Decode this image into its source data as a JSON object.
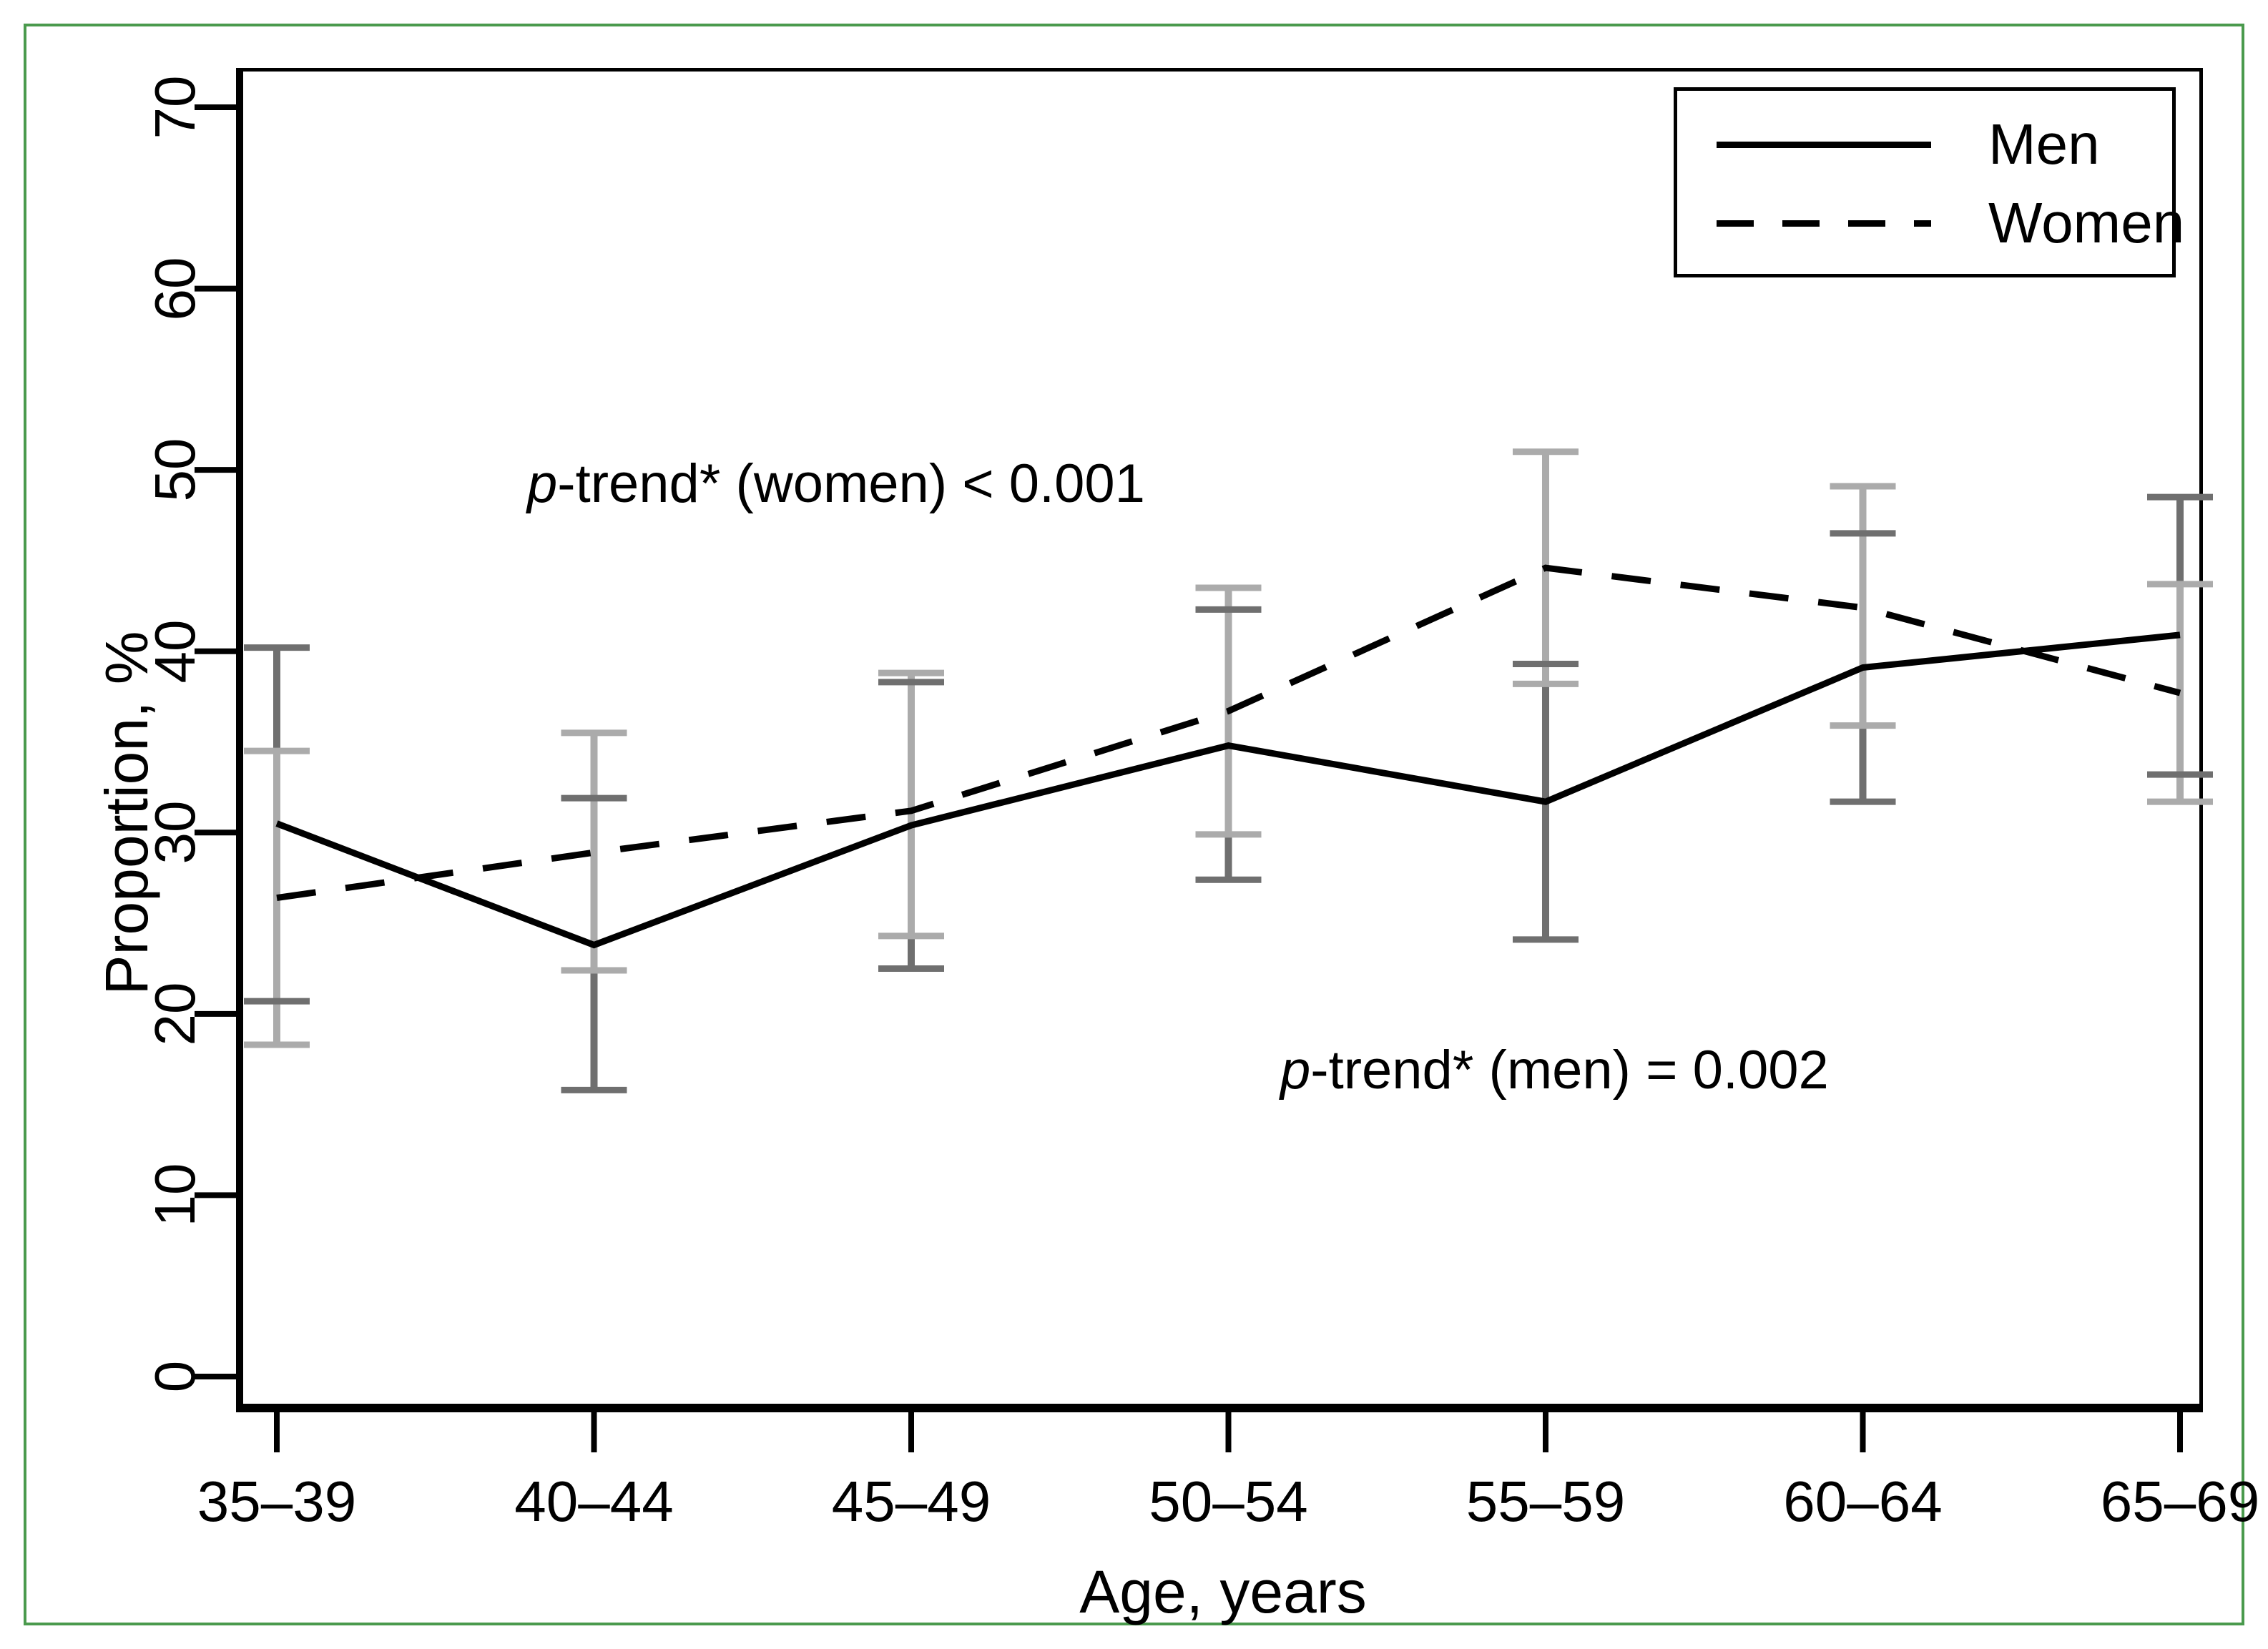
{
  "figure": {
    "border_color": "#4a9a4d",
    "background": "#ffffff"
  },
  "axes": {
    "y_title": "Proportion, %",
    "x_title": "Age, years",
    "y_ticks": [
      "0",
      "10",
      "20",
      "30",
      "40",
      "50",
      "60",
      "70"
    ]
  },
  "legend": {
    "items": [
      {
        "label": "Men",
        "style": "solid"
      },
      {
        "label": "Women",
        "style": "dashed"
      }
    ]
  },
  "annotations": {
    "women": {
      "italic": "p",
      "text": "-trend* (women) < 0.001"
    },
    "men": {
      "italic": "p",
      "text": "-trend* (men) = 0.002"
    }
  },
  "chart_data": {
    "type": "line",
    "title": "",
    "xlabel": "Age, years",
    "ylabel": "Proportion, %",
    "categories": [
      "35–39",
      "40–44",
      "45–49",
      "50–54",
      "55–59",
      "60–64",
      "65–69"
    ],
    "y_tick_values": [
      0,
      10,
      20,
      30,
      40,
      50,
      60,
      70
    ],
    "ylim": [
      0,
      70
    ],
    "grid": false,
    "legend_position": "top-right",
    "error_bars": "95% CI",
    "series": [
      {
        "name": "Men",
        "line": "solid",
        "color": "#000000",
        "error_color": "#6f6f6f",
        "values": [
          30.5,
          23.8,
          30.4,
          34.8,
          31.7,
          39.1,
          40.9
        ],
        "ci_low": [
          20.7,
          15.8,
          22.5,
          27.4,
          24.1,
          31.7,
          33.2
        ],
        "ci_high": [
          40.2,
          31.9,
          38.3,
          42.3,
          39.3,
          46.5,
          48.5
        ]
      },
      {
        "name": "Women",
        "line": "dashed",
        "color": "#000000",
        "error_color": "#ababab",
        "values": [
          26.4,
          28.9,
          31.2,
          36.7,
          44.6,
          42.4,
          37.7
        ],
        "ci_low": [
          18.3,
          22.4,
          24.3,
          29.9,
          38.2,
          35.9,
          31.7
        ],
        "ci_high": [
          34.5,
          35.5,
          38.8,
          43.5,
          51.0,
          49.1,
          43.7
        ]
      }
    ]
  }
}
